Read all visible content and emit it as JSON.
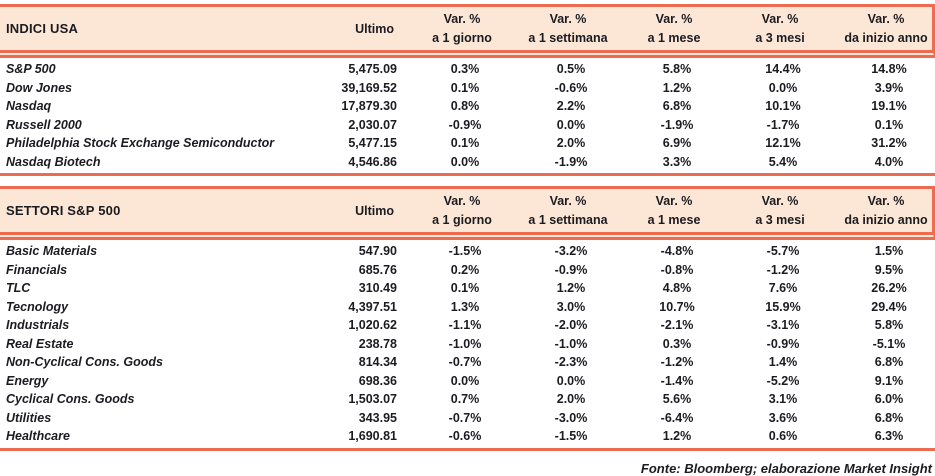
{
  "colors": {
    "accent_rule": "#ED6B51",
    "header_background": "#FCE6D5",
    "text": "#1B1B22"
  },
  "columns": {
    "ultimo": "Ultimo",
    "var_label": "Var. %",
    "sub": [
      "a 1 giorno",
      "a 1 settimana",
      "a 1 mese",
      "a 3 mesi",
      "da inizio anno"
    ]
  },
  "tables": [
    {
      "title": "INDICI USA",
      "rows": [
        {
          "name": "S&P 500",
          "ultimo": "5,475.09",
          "vars": [
            "0.3%",
            "0.5%",
            "5.8%",
            "14.4%",
            "14.8%"
          ]
        },
        {
          "name": "Dow Jones",
          "ultimo": "39,169.52",
          "vars": [
            "0.1%",
            "-0.6%",
            "1.2%",
            "0.0%",
            "3.9%"
          ]
        },
        {
          "name": "Nasdaq",
          "ultimo": "17,879.30",
          "vars": [
            "0.8%",
            "2.2%",
            "6.8%",
            "10.1%",
            "19.1%"
          ]
        },
        {
          "name": "Russell 2000",
          "ultimo": "2,030.07",
          "vars": [
            "-0.9%",
            "0.0%",
            "-1.9%",
            "-1.7%",
            "0.1%"
          ]
        },
        {
          "name": "Philadelphia Stock Exchange Semiconductor",
          "ultimo": "5,477.15",
          "vars": [
            "0.1%",
            "2.0%",
            "6.9%",
            "12.1%",
            "31.2%"
          ]
        },
        {
          "name": "Nasdaq Biotech",
          "ultimo": "4,546.86",
          "vars": [
            "0.0%",
            "-1.9%",
            "3.3%",
            "5.4%",
            "4.0%"
          ]
        }
      ]
    },
    {
      "title": "SETTORI S&P 500",
      "rows": [
        {
          "name": "Basic Materials",
          "ultimo": "547.90",
          "vars": [
            "-1.5%",
            "-3.2%",
            "-4.8%",
            "-5.7%",
            "1.5%"
          ]
        },
        {
          "name": "Financials",
          "ultimo": "685.76",
          "vars": [
            "0.2%",
            "-0.9%",
            "-0.8%",
            "-1.2%",
            "9.5%"
          ]
        },
        {
          "name": "TLC",
          "ultimo": "310.49",
          "vars": [
            "0.1%",
            "1.2%",
            "4.8%",
            "7.6%",
            "26.2%"
          ]
        },
        {
          "name": "Tecnology",
          "ultimo": "4,397.51",
          "vars": [
            "1.3%",
            "3.0%",
            "10.7%",
            "15.9%",
            "29.4%"
          ]
        },
        {
          "name": "Industrials",
          "ultimo": "1,020.62",
          "vars": [
            "-1.1%",
            "-2.0%",
            "-2.1%",
            "-3.1%",
            "5.8%"
          ]
        },
        {
          "name": "Real Estate",
          "ultimo": "238.78",
          "vars": [
            "-1.0%",
            "-1.0%",
            "0.3%",
            "-0.9%",
            "-5.1%"
          ]
        },
        {
          "name": "Non-Cyclical Cons. Goods",
          "ultimo": "814.34",
          "vars": [
            "-0.7%",
            "-2.3%",
            "-1.2%",
            "1.4%",
            "6.8%"
          ]
        },
        {
          "name": "Energy",
          "ultimo": "698.36",
          "vars": [
            "0.0%",
            "0.0%",
            "-1.4%",
            "-5.2%",
            "9.1%"
          ]
        },
        {
          "name": "Cyclical Cons. Goods",
          "ultimo": "1,503.07",
          "vars": [
            "0.7%",
            "2.0%",
            "5.6%",
            "3.1%",
            "6.0%"
          ]
        },
        {
          "name": "Utilities",
          "ultimo": "343.95",
          "vars": [
            "-0.7%",
            "-3.0%",
            "-6.4%",
            "3.6%",
            "6.8%"
          ]
        },
        {
          "name": "Healthcare",
          "ultimo": "1,690.81",
          "vars": [
            "-0.6%",
            "-1.5%",
            "1.2%",
            "0.6%",
            "6.3%"
          ]
        }
      ]
    }
  ],
  "footer": "Fonte: Bloomberg; elaborazione Market Insight"
}
